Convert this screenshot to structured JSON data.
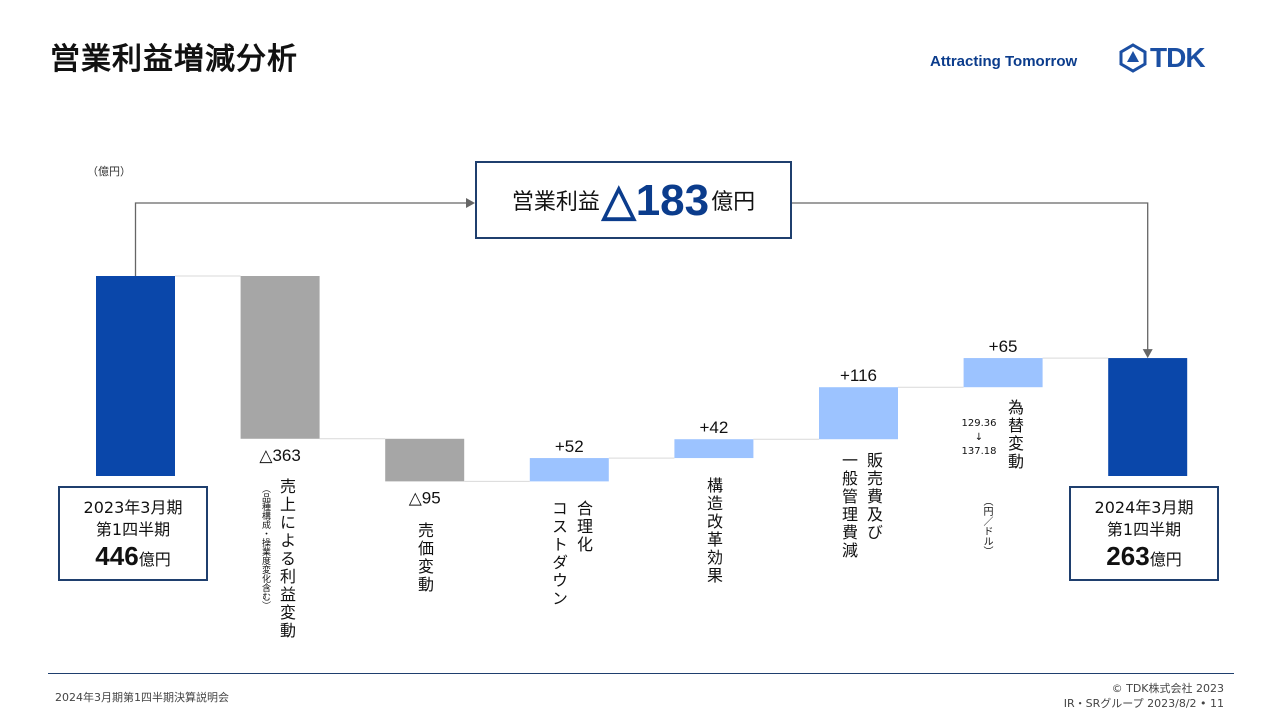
{
  "header": {
    "title": "営業利益増減分析",
    "tagline": "Attracting Tomorrow",
    "logo_text": "TDK"
  },
  "unit_label": "（億円）",
  "callout": {
    "label": "営業利益",
    "value": "△183",
    "unit": "億円"
  },
  "start_box": {
    "line1": "2023年3月期",
    "line2": "第1四半期",
    "value": "446",
    "unit": "億円"
  },
  "end_box": {
    "line1": "2024年3月期",
    "line2": "第1四半期",
    "value": "263",
    "unit": "億円"
  },
  "categories": {
    "sales": {
      "main": "売上による利益変動",
      "sub": "（品種構成・操業度変化含む）"
    },
    "price": {
      "main": "売価変動"
    },
    "cost": {
      "line1": "合理化",
      "line2": "コストダウン"
    },
    "reform": {
      "main": "構造改革効果"
    },
    "sga": {
      "line1": "販売費及び",
      "line2": "一般管理費減"
    },
    "fx": {
      "main": "為替変動",
      "sub": "（円／ドル）",
      "rate_from": "129.36",
      "arrow": "↓",
      "rate_to": "137.18"
    }
  },
  "colors": {
    "base": "#0a47aa",
    "decrease": "#a6a6a6",
    "increase": "#9cc3ff"
  },
  "chart_data": {
    "type": "waterfall",
    "y_min": 0,
    "bars": [
      {
        "key": "start",
        "label": "446",
        "value": 446,
        "kind": "total"
      },
      {
        "key": "sales",
        "label": "△363",
        "value": -363,
        "kind": "decrease"
      },
      {
        "key": "price",
        "label": "△95",
        "value": -95,
        "kind": "decrease"
      },
      {
        "key": "cost",
        "label": "+52",
        "value": 52,
        "kind": "increase"
      },
      {
        "key": "reform",
        "label": "+42",
        "value": 42,
        "kind": "increase"
      },
      {
        "key": "sga",
        "label": "+116",
        "value": 116,
        "kind": "increase"
      },
      {
        "key": "fx",
        "label": "+65",
        "value": 65,
        "kind": "increase"
      },
      {
        "key": "end",
        "label": "263",
        "value": 263,
        "kind": "total"
      }
    ]
  },
  "footer": {
    "left": "2024年3月期第1四半期決算説明会",
    "copyright": "© TDK株式会社 2023",
    "group": "IR・SRグループ  2023/8/2 • 11"
  }
}
